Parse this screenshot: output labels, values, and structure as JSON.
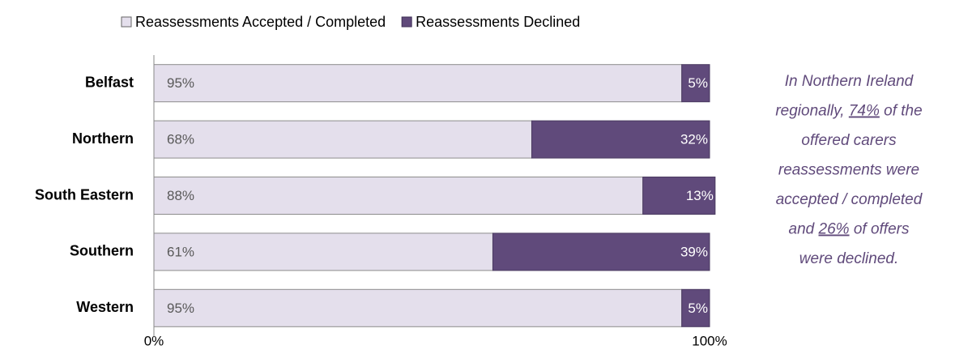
{
  "chart_data": {
    "type": "stacked-bar-horizontal",
    "categories": [
      "Belfast",
      "Northern",
      "South Eastern",
      "Southern",
      "Western"
    ],
    "series": [
      {
        "name": "Reassessments Accepted / Completed",
        "color": "#e4dfec",
        "values": [
          95,
          68,
          88,
          61,
          95
        ],
        "value_labels": [
          "95%",
          "68%",
          "88%",
          "61%",
          "95%"
        ]
      },
      {
        "name": "Reassessments Declined",
        "color": "#604a7b",
        "values": [
          5,
          32,
          13,
          39,
          5
        ],
        "value_labels": [
          "5%",
          "32%",
          "13%",
          "39%",
          "5%"
        ]
      }
    ],
    "xlim": [
      0,
      100
    ],
    "xticks": [
      {
        "value": 0,
        "label": "0%"
      },
      {
        "value": 100,
        "label": "100%"
      }
    ],
    "annotation": [
      [
        "In Northern Ireland"
      ],
      [
        "regionally, ",
        "74%",
        " of the"
      ],
      [
        "offered carers"
      ],
      [
        "reassessments were"
      ],
      [
        "accepted / completed"
      ],
      [
        "and ",
        "26%",
        " of offers"
      ],
      [
        "were declined."
      ]
    ]
  }
}
